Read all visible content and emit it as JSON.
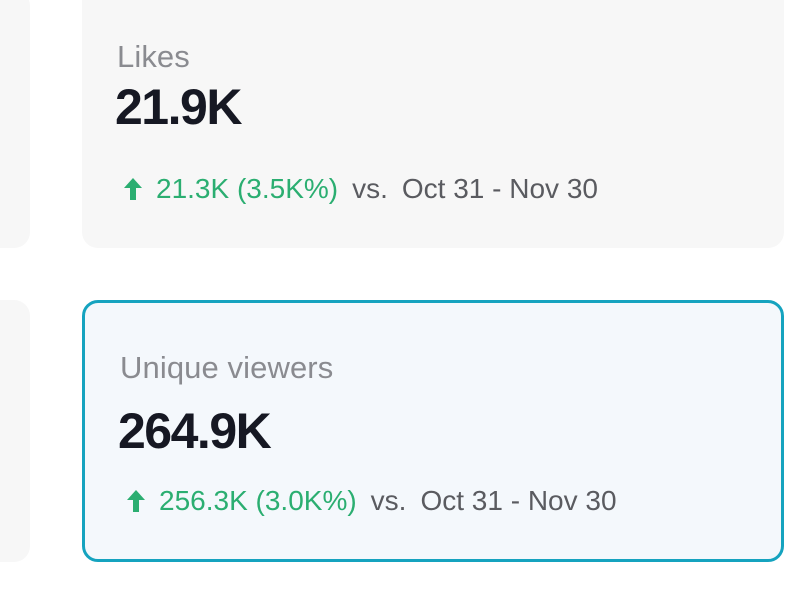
{
  "metrics": [
    {
      "label": "Likes",
      "value": "21.9K",
      "change": "21.3K (3.5K%)",
      "vs_label": "vs.",
      "date_range": "Oct 31 - Nov 30",
      "selected": false
    },
    {
      "label": "Unique viewers",
      "value": "264.9K",
      "change": "256.3K (3.0K%)",
      "vs_label": "vs.",
      "date_range": "Oct 31 - Nov 30",
      "selected": true
    }
  ],
  "icons": {
    "change_arrow": "arrow-up-icon"
  },
  "colors": {
    "positive": "#2bae71",
    "selected_border": "#15a3bf",
    "card_background": "#f7f7f7",
    "selected_background": "#f4f8fc",
    "value_text": "#161823",
    "label_text": "#8a8b90"
  }
}
